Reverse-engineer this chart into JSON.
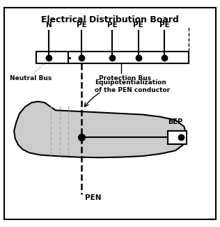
{
  "title": "Electrical Distribution Board",
  "background_color": "#ffffff",
  "neutral_bus_label": "Neutral Bus",
  "protection_bus_label": "Protection Bus",
  "equipot_label": "Equipotentialization\nof the PEN conductor",
  "bep_label": "BEP",
  "pen_label": "PEN",
  "n_label": "N",
  "pe_labels": [
    "PE",
    "PE",
    "PE",
    "PE"
  ],
  "fig_width": 3.16,
  "fig_height": 3.26,
  "dpi": 100
}
